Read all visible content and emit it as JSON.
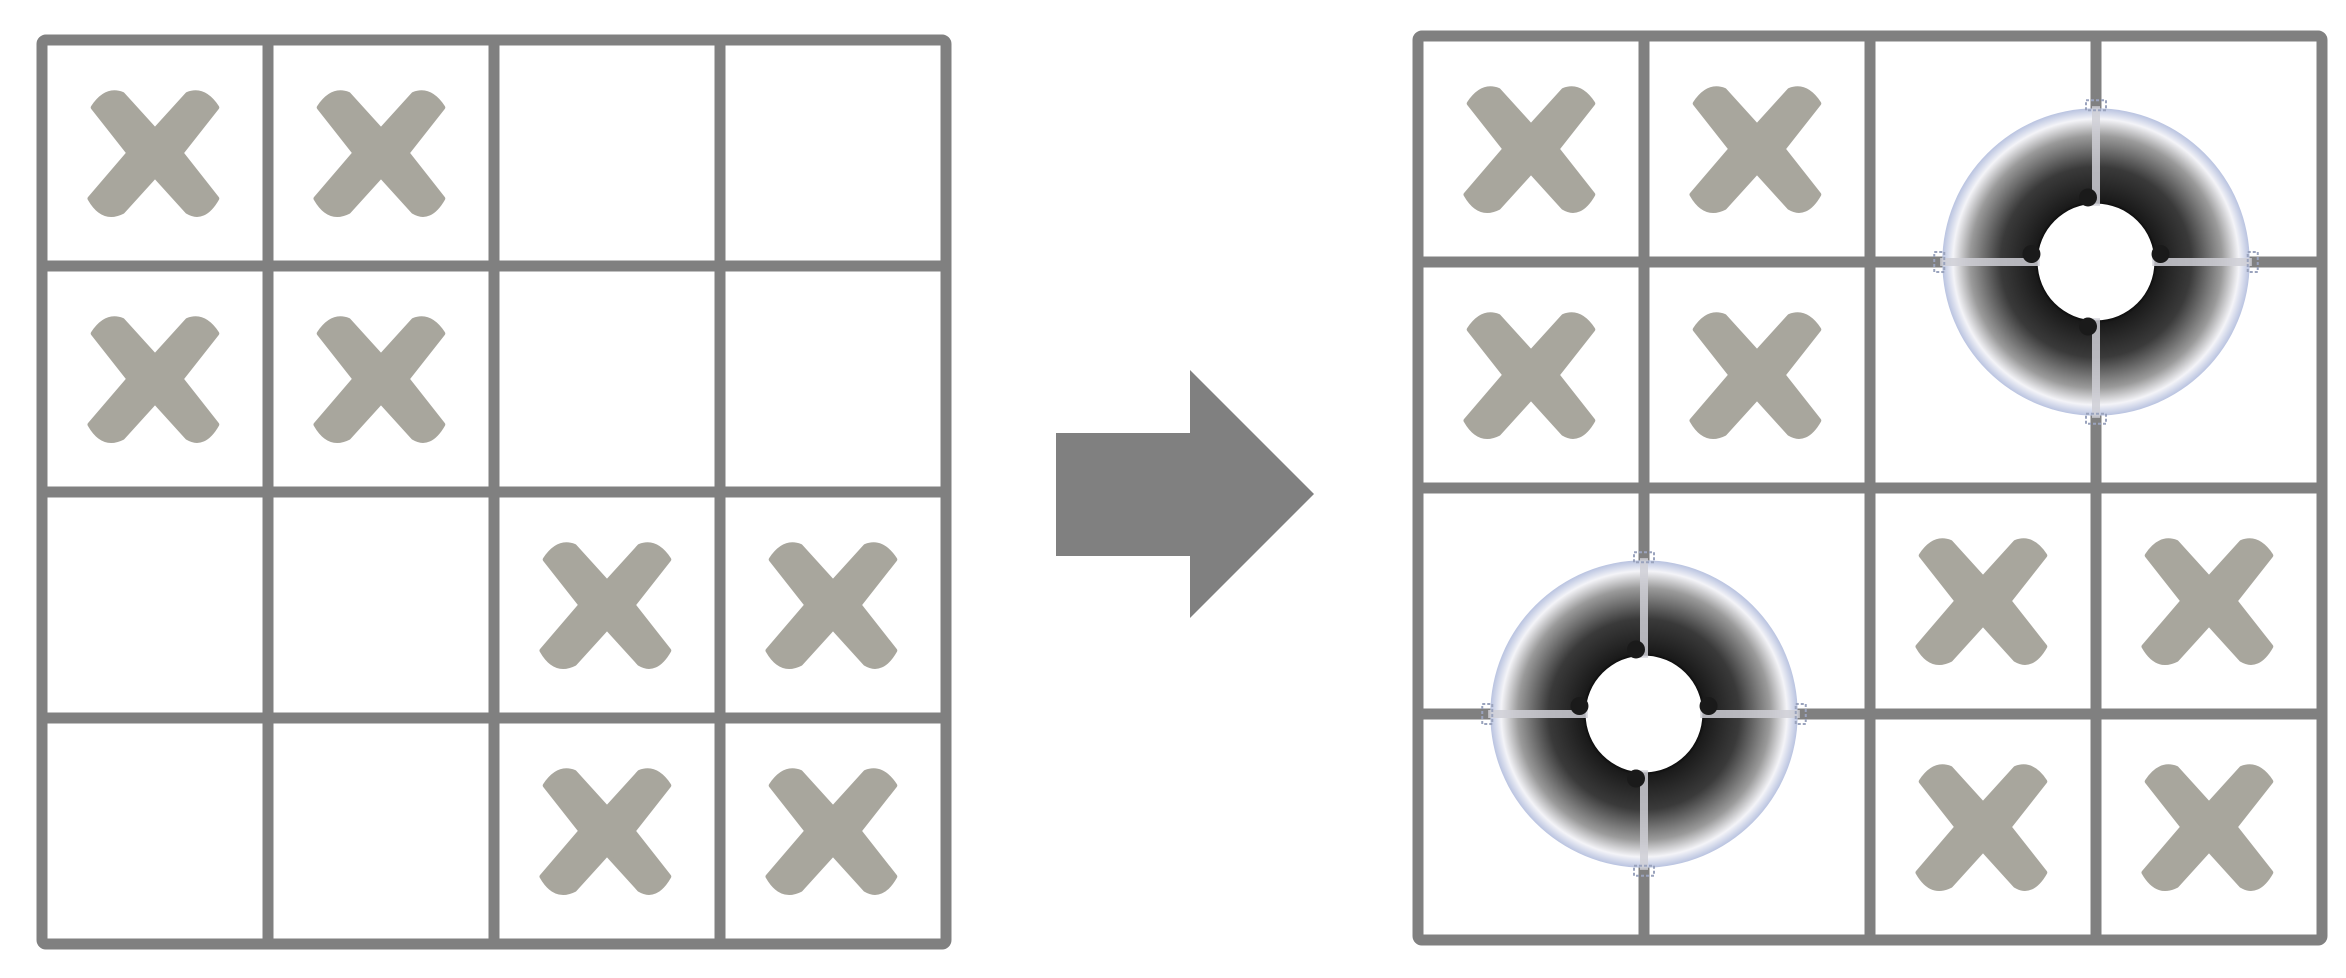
{
  "colors": {
    "grid_line": "#808080",
    "cross_mark": "#a8a69d",
    "arrow": "#808080",
    "ring_dark": "#1a1a1a",
    "ring_light": "#ffffff",
    "ring_edge": "#b9c3e0",
    "background": "#ffffff"
  },
  "icons": {
    "cross": "x-mark-icon",
    "ring": "lifebuoy-icon",
    "arrow": "right-arrow-icon"
  },
  "grids": [
    {
      "name": "before-grid",
      "rows": 4,
      "cols": 4,
      "crosses": [
        [
          0,
          0
        ],
        [
          0,
          1
        ],
        [
          1,
          0
        ],
        [
          1,
          1
        ],
        [
          2,
          2
        ],
        [
          2,
          3
        ],
        [
          3,
          2
        ],
        [
          3,
          3
        ]
      ],
      "rings": []
    },
    {
      "name": "after-grid",
      "rows": 4,
      "cols": 4,
      "crosses": [
        [
          0,
          0
        ],
        [
          0,
          1
        ],
        [
          1,
          0
        ],
        [
          1,
          1
        ],
        [
          2,
          2
        ],
        [
          2,
          3
        ],
        [
          3,
          2
        ],
        [
          3,
          3
        ]
      ],
      "rings": [
        [
          1,
          3
        ],
        [
          3,
          1
        ]
      ]
    }
  ]
}
